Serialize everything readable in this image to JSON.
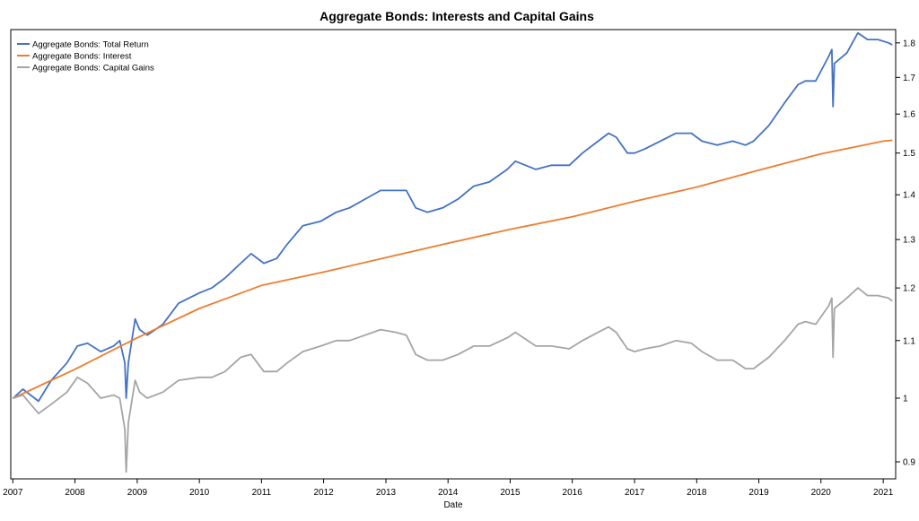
{
  "chart_data": {
    "type": "line",
    "title": "Aggregate Bonds: Interests and Capital Gains",
    "xlabel": "Date",
    "ylabel": "",
    "x_scale": "time",
    "y_scale": "log",
    "xlim": [
      "2006-12-20",
      "2021-03-15"
    ],
    "ylim": [
      0.875,
      1.84
    ],
    "x_ticks": [
      "2007",
      "2008",
      "2009",
      "2010",
      "2011",
      "2012",
      "2013",
      "2014",
      "2015",
      "2016",
      "2017",
      "2018",
      "2019",
      "2020",
      "2021"
    ],
    "y_ticks": [
      0.9,
      1,
      1.1,
      1.2,
      1.3,
      1.4,
      1.5,
      1.6,
      1.7,
      1.8
    ],
    "y_tick_labels": [
      "0.9",
      "1",
      "1.1",
      "1.2",
      "1.3",
      "1.4",
      "1.5",
      "1.6",
      "1.7",
      "1.8"
    ],
    "y_axis_side": "right",
    "grid": false,
    "legend_position": "top-left",
    "series": [
      {
        "name": "Aggregate Bonds: Total Return",
        "color": "#4472c4",
        "points": [
          [
            "2007-01-03",
            1.0
          ],
          [
            "2007-03-01",
            1.015
          ],
          [
            "2007-06-01",
            0.995
          ],
          [
            "2007-08-15",
            1.03
          ],
          [
            "2007-11-15",
            1.06
          ],
          [
            "2008-01-15",
            1.09
          ],
          [
            "2008-03-15",
            1.095
          ],
          [
            "2008-06-01",
            1.08
          ],
          [
            "2008-08-15",
            1.09
          ],
          [
            "2008-09-20",
            1.1
          ],
          [
            "2008-10-20",
            1.06
          ],
          [
            "2008-10-28",
            1.0
          ],
          [
            "2008-11-10",
            1.06
          ],
          [
            "2008-12-20",
            1.14
          ],
          [
            "2009-01-15",
            1.12
          ],
          [
            "2009-03-01",
            1.11
          ],
          [
            "2009-06-01",
            1.13
          ],
          [
            "2009-09-01",
            1.17
          ],
          [
            "2010-01-01",
            1.19
          ],
          [
            "2010-03-15",
            1.2
          ],
          [
            "2010-06-01",
            1.22
          ],
          [
            "2010-09-01",
            1.25
          ],
          [
            "2010-11-01",
            1.27
          ],
          [
            "2011-01-15",
            1.25
          ],
          [
            "2011-04-01",
            1.26
          ],
          [
            "2011-06-01",
            1.29
          ],
          [
            "2011-09-01",
            1.33
          ],
          [
            "2011-12-15",
            1.34
          ],
          [
            "2012-03-15",
            1.36
          ],
          [
            "2012-06-01",
            1.37
          ],
          [
            "2012-09-01",
            1.39
          ],
          [
            "2012-12-01",
            1.41
          ],
          [
            "2013-03-01",
            1.41
          ],
          [
            "2013-05-01",
            1.41
          ],
          [
            "2013-06-25",
            1.37
          ],
          [
            "2013-09-01",
            1.36
          ],
          [
            "2013-12-01",
            1.37
          ],
          [
            "2014-03-01",
            1.39
          ],
          [
            "2014-06-01",
            1.42
          ],
          [
            "2014-09-01",
            1.43
          ],
          [
            "2014-12-15",
            1.46
          ],
          [
            "2015-02-01",
            1.48
          ],
          [
            "2015-06-01",
            1.46
          ],
          [
            "2015-09-01",
            1.47
          ],
          [
            "2015-12-15",
            1.47
          ],
          [
            "2016-03-01",
            1.5
          ],
          [
            "2016-06-01",
            1.53
          ],
          [
            "2016-08-01",
            1.55
          ],
          [
            "2016-09-15",
            1.54
          ],
          [
            "2016-11-20",
            1.5
          ],
          [
            "2017-01-01",
            1.5
          ],
          [
            "2017-03-01",
            1.51
          ],
          [
            "2017-06-01",
            1.53
          ],
          [
            "2017-09-01",
            1.55
          ],
          [
            "2017-12-01",
            1.55
          ],
          [
            "2018-02-01",
            1.53
          ],
          [
            "2018-05-01",
            1.52
          ],
          [
            "2018-08-01",
            1.53
          ],
          [
            "2018-10-15",
            1.52
          ],
          [
            "2018-12-01",
            1.53
          ],
          [
            "2019-03-01",
            1.57
          ],
          [
            "2019-06-01",
            1.63
          ],
          [
            "2019-08-20",
            1.68
          ],
          [
            "2019-10-01",
            1.69
          ],
          [
            "2019-12-01",
            1.69
          ],
          [
            "2020-02-15",
            1.76
          ],
          [
            "2020-03-05",
            1.78
          ],
          [
            "2020-03-12",
            1.62
          ],
          [
            "2020-03-20",
            1.74
          ],
          [
            "2020-06-01",
            1.77
          ],
          [
            "2020-08-05",
            1.83
          ],
          [
            "2020-10-01",
            1.81
          ],
          [
            "2020-12-01",
            1.81
          ],
          [
            "2021-02-01",
            1.8
          ],
          [
            "2021-02-20",
            1.795
          ]
        ]
      },
      {
        "name": "Aggregate Bonds: Interest",
        "color": "#ed7d31",
        "points": [
          [
            "2007-01-03",
            1.0
          ],
          [
            "2008-01-01",
            1.049
          ],
          [
            "2009-01-01",
            1.105
          ],
          [
            "2010-01-01",
            1.16
          ],
          [
            "2011-01-01",
            1.205
          ],
          [
            "2012-01-01",
            1.232
          ],
          [
            "2013-01-01",
            1.262
          ],
          [
            "2014-01-01",
            1.292
          ],
          [
            "2015-01-01",
            1.322
          ],
          [
            "2016-01-01",
            1.35
          ],
          [
            "2017-01-01",
            1.385
          ],
          [
            "2018-01-01",
            1.418
          ],
          [
            "2019-01-01",
            1.458
          ],
          [
            "2020-01-01",
            1.498
          ],
          [
            "2021-01-01",
            1.53
          ],
          [
            "2021-02-20",
            1.532
          ]
        ]
      },
      {
        "name": "Aggregate Bonds: Capital Gains",
        "color": "#a5a5a5",
        "points": [
          [
            "2007-01-03",
            1.0
          ],
          [
            "2007-03-01",
            1.005
          ],
          [
            "2007-06-01",
            0.975
          ],
          [
            "2007-08-15",
            0.99
          ],
          [
            "2007-11-15",
            1.01
          ],
          [
            "2008-01-15",
            1.035
          ],
          [
            "2008-03-15",
            1.025
          ],
          [
            "2008-06-01",
            1.0
          ],
          [
            "2008-08-15",
            1.005
          ],
          [
            "2008-09-20",
            1.0
          ],
          [
            "2008-10-20",
            0.95
          ],
          [
            "2008-10-28",
            0.885
          ],
          [
            "2008-11-10",
            0.96
          ],
          [
            "2008-12-20",
            1.03
          ],
          [
            "2009-01-15",
            1.01
          ],
          [
            "2009-03-01",
            1.0
          ],
          [
            "2009-06-01",
            1.01
          ],
          [
            "2009-09-01",
            1.03
          ],
          [
            "2010-01-01",
            1.035
          ],
          [
            "2010-03-15",
            1.035
          ],
          [
            "2010-06-01",
            1.045
          ],
          [
            "2010-09-01",
            1.07
          ],
          [
            "2010-11-01",
            1.075
          ],
          [
            "2011-01-15",
            1.045
          ],
          [
            "2011-04-01",
            1.045
          ],
          [
            "2011-06-01",
            1.06
          ],
          [
            "2011-09-01",
            1.08
          ],
          [
            "2011-12-15",
            1.09
          ],
          [
            "2012-03-15",
            1.1
          ],
          [
            "2012-06-01",
            1.1
          ],
          [
            "2012-09-01",
            1.11
          ],
          [
            "2012-12-01",
            1.12
          ],
          [
            "2013-03-01",
            1.115
          ],
          [
            "2013-05-01",
            1.11
          ],
          [
            "2013-06-25",
            1.075
          ],
          [
            "2013-09-01",
            1.065
          ],
          [
            "2013-12-01",
            1.065
          ],
          [
            "2014-03-01",
            1.075
          ],
          [
            "2014-06-01",
            1.09
          ],
          [
            "2014-09-01",
            1.09
          ],
          [
            "2014-12-15",
            1.105
          ],
          [
            "2015-02-01",
            1.115
          ],
          [
            "2015-06-01",
            1.09
          ],
          [
            "2015-09-01",
            1.09
          ],
          [
            "2015-12-15",
            1.085
          ],
          [
            "2016-03-01",
            1.1
          ],
          [
            "2016-06-01",
            1.115
          ],
          [
            "2016-08-01",
            1.125
          ],
          [
            "2016-09-15",
            1.115
          ],
          [
            "2016-11-20",
            1.085
          ],
          [
            "2017-01-01",
            1.08
          ],
          [
            "2017-03-01",
            1.085
          ],
          [
            "2017-06-01",
            1.09
          ],
          [
            "2017-09-01",
            1.1
          ],
          [
            "2017-12-01",
            1.095
          ],
          [
            "2018-02-01",
            1.08
          ],
          [
            "2018-05-01",
            1.065
          ],
          [
            "2018-08-01",
            1.065
          ],
          [
            "2018-10-15",
            1.05
          ],
          [
            "2018-12-01",
            1.05
          ],
          [
            "2019-03-01",
            1.07
          ],
          [
            "2019-06-01",
            1.1
          ],
          [
            "2019-08-20",
            1.13
          ],
          [
            "2019-10-01",
            1.135
          ],
          [
            "2019-12-01",
            1.13
          ],
          [
            "2020-02-15",
            1.165
          ],
          [
            "2020-03-05",
            1.18
          ],
          [
            "2020-03-12",
            1.07
          ],
          [
            "2020-03-20",
            1.16
          ],
          [
            "2020-06-01",
            1.18
          ],
          [
            "2020-08-05",
            1.2
          ],
          [
            "2020-10-01",
            1.185
          ],
          [
            "2020-12-01",
            1.185
          ],
          [
            "2021-02-01",
            1.18
          ],
          [
            "2021-02-20",
            1.175
          ]
        ]
      }
    ]
  }
}
